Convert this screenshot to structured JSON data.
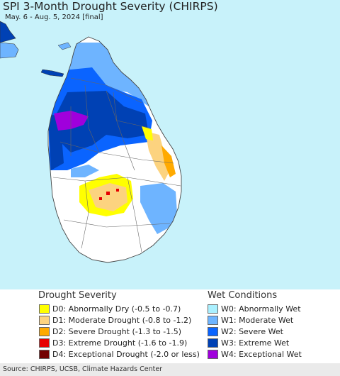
{
  "map": {
    "title": "SPI 3-Month Drought Severity (CHIRPS)",
    "subtitle": "May. 6 - Aug. 5, 2024 [final]"
  },
  "legend": {
    "drought_heading": "Drought Severity",
    "wet_heading": "Wet Conditions",
    "drought_items": [
      {
        "label": "D0: Abnormally Dry (-0.5 to -0.7)",
        "color": "#ffff00"
      },
      {
        "label": "D1: Moderate Drought (-0.8 to -1.2)",
        "color": "#fcd37f"
      },
      {
        "label": "D2: Severe Drought (-1.3 to -1.5)",
        "color": "#ffaa00"
      },
      {
        "label": "D3: Extreme Drought (-1.6 to -1.9)",
        "color": "#e60000"
      },
      {
        "label": "D4: Exceptional Drought (-2.0 or less)",
        "color": "#730000"
      }
    ],
    "wet_items": [
      {
        "label": "W0: Abnormally Wet",
        "color": "#aaf0ff"
      },
      {
        "label": "W1: Moderate Wet",
        "color": "#6eb4ff"
      },
      {
        "label": "W2: Severe Wet",
        "color": "#0a64ff"
      },
      {
        "label": "W3: Extreme Wet",
        "color": "#0041b4"
      },
      {
        "label": "W4: Exceptional Wet",
        "color": "#a000dc"
      }
    ]
  },
  "footer": {
    "source": "Source: CHIRPS, UCSB, Climate Hazards Center"
  },
  "colors": {
    "ocean": "#c8f2fa",
    "land_normal": "#ffffff",
    "border": "#555555"
  }
}
